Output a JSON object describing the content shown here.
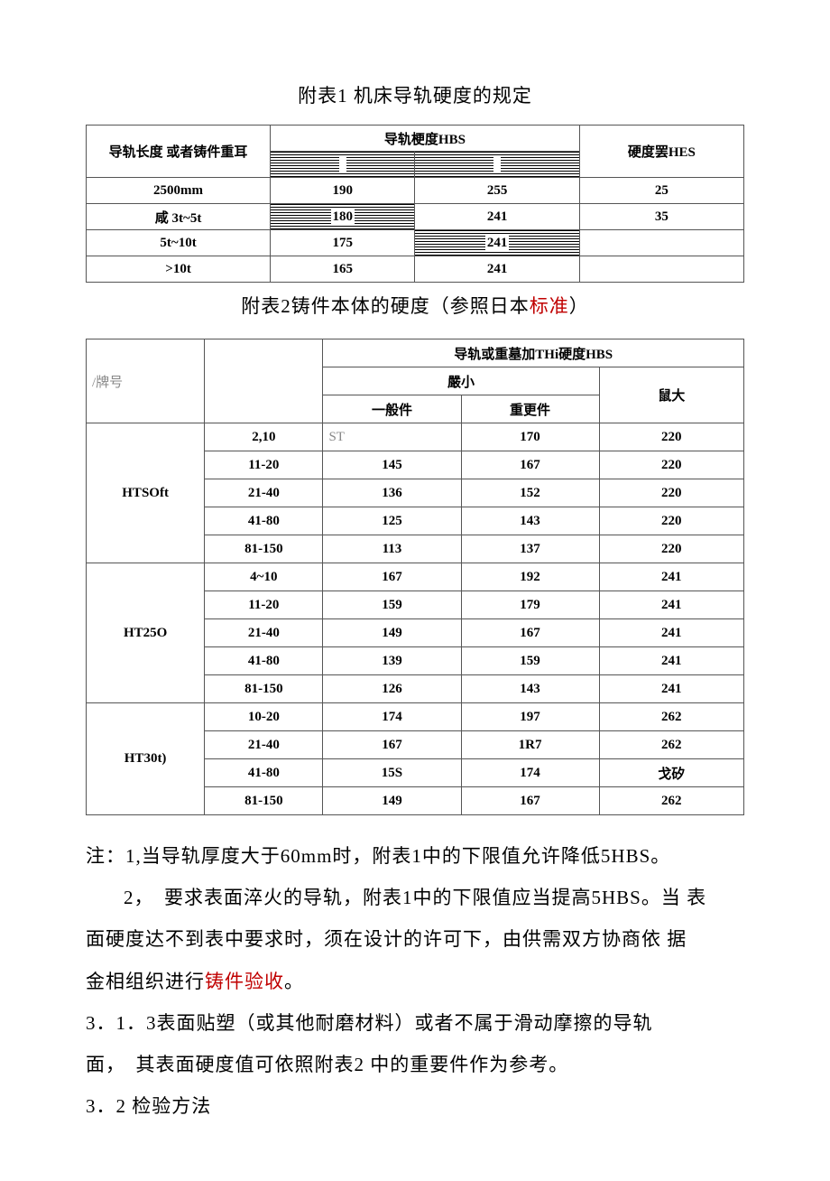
{
  "table1": {
    "caption": "附表1  机床导轨硬度的规定",
    "header_col1": "导轨长度  或者铸件重耳",
    "header_col2": "导轨梗度HBS",
    "header_col3": "硬度罢HES",
    "rows": [
      {
        "c1": "2500mm",
        "c2": "190",
        "c3": "255",
        "c4": "25",
        "hatch": [
          false,
          false,
          false,
          false
        ]
      },
      {
        "c1": "咸  3t~5t",
        "c2": "180",
        "c3": "241",
        "c4": "35",
        "hatch": [
          false,
          true,
          false,
          false
        ]
      },
      {
        "c1": "5t~10t",
        "c2": "175",
        "c3": "241",
        "c4": "",
        "hatch": [
          false,
          false,
          true,
          false
        ]
      },
      {
        "c1": ">10t",
        "c2": "165",
        "c3": "241",
        "c4": "",
        "hatch": [
          false,
          false,
          false,
          false
        ]
      }
    ]
  },
  "table2": {
    "caption_pre": "附表2铸件本体的硬度（参照日本",
    "caption_red": "标准",
    "caption_post": "）",
    "row_label": "/牌号",
    "header_top": "导轨或重墓加THi硬度HBS",
    "header_min": "嚴小",
    "header_max": "鼠大",
    "header_general": "一般件",
    "header_heavy": "重更件",
    "groups": [
      {
        "grade": "HTSOft",
        "rows": [
          {
            "t": "2,10",
            "a": "ST",
            "b": "170",
            "c": "220",
            "a_special": true
          },
          {
            "t": "11-20",
            "a": "145",
            "b": "167",
            "c": "220"
          },
          {
            "t": "21-40",
            "a": "136",
            "b": "152",
            "c": "220"
          },
          {
            "t": "41-80",
            "a": "125",
            "b": "143",
            "c": "220"
          },
          {
            "t": "81-150",
            "a": "113",
            "b": "137",
            "c": "220"
          }
        ]
      },
      {
        "grade": "HT25O",
        "rows": [
          {
            "t": "4~10",
            "a": "167",
            "b": "192",
            "c": "241"
          },
          {
            "t": "11-20",
            "a": "159",
            "b": "179",
            "c": "241"
          },
          {
            "t": "21-40",
            "a": "149",
            "b": "167",
            "c": "241"
          },
          {
            "t": "41-80",
            "a": "139",
            "b": "159",
            "c": "241"
          },
          {
            "t": "81-150",
            "a": "126",
            "b": "143",
            "c": "241"
          }
        ]
      },
      {
        "grade": "HT30t)",
        "rows": [
          {
            "t": "10-20",
            "a": "174",
            "b": "197",
            "c": "262"
          },
          {
            "t": "21-40",
            "a": "167",
            "b": "1R7",
            "c": "262"
          },
          {
            "t": "41-80",
            "a": "15S",
            "b": "174",
            "c": "戈矽"
          },
          {
            "t": "81-150",
            "a": "149",
            "b": "167",
            "c": "262"
          }
        ]
      }
    ]
  },
  "notes": {
    "n1": "注：1,当导轨厚度大于60mm时，附表1中的下限值允许降低5HBS。",
    "n2a": "2，　要求表面淬火的导轨，附表1中的下限值应当提高5HBS。当  表",
    "n2b": "面硬度达不到表中要求时，须在设计的许可下，由供需双方协商依  据",
    "n2c_pre": "金相组织进行",
    "n2c_red": "铸件验收",
    "n2c_post": "。",
    "n3a": "3．1．3表面贴塑（或其他耐磨材料）或者不属于滑动摩擦的导轨",
    "n3b": "面，　其表面硬度值可依照附表2  中的重要件作为参考。",
    "n4": "3．2  检验方法"
  }
}
